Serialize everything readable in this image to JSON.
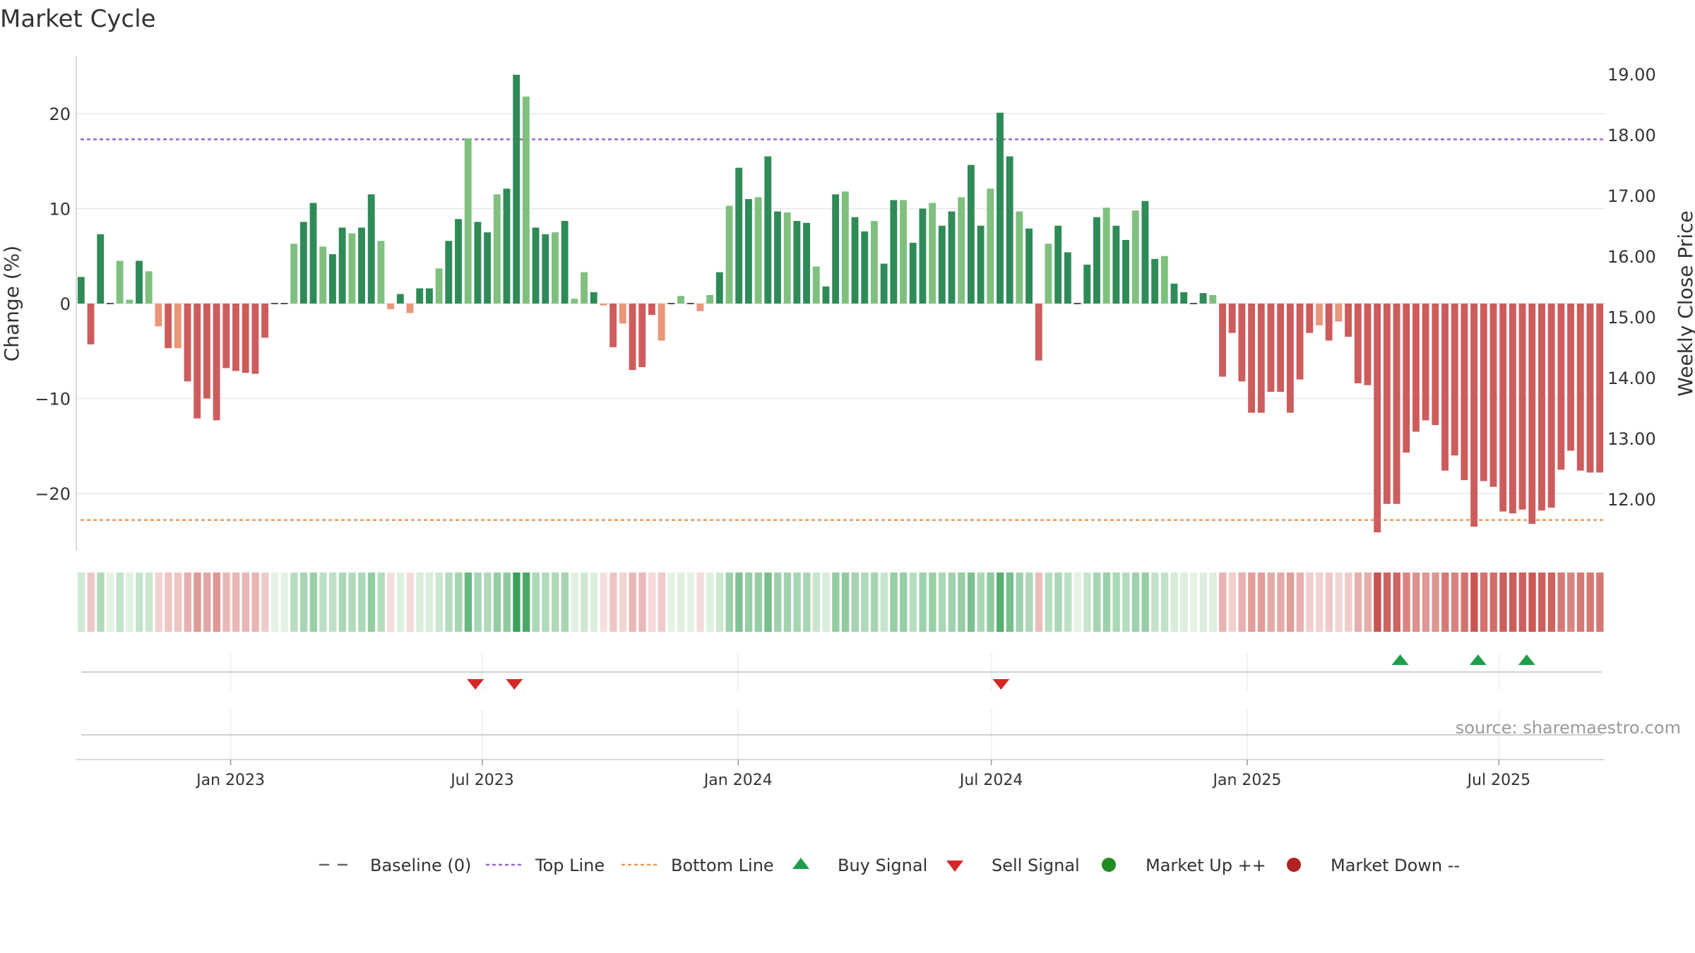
{
  "chart_data": {
    "type": "bar",
    "title": "Market Cycle",
    "ylabel": "Change (%)",
    "y2label": "Weekly Close Price",
    "ylim": [
      -26,
      26
    ],
    "y2lim": [
      11.3,
      19.4
    ],
    "yticks": [
      "−20",
      "−10",
      "0",
      "10",
      "20"
    ],
    "yticks_values": [
      -20,
      -10,
      0,
      10,
      20
    ],
    "y2ticks": [
      "12.00",
      "13.00",
      "14.00",
      "15.00",
      "16.00",
      "17.00",
      "18.00",
      "19.00"
    ],
    "y2ticks_values": [
      12,
      13,
      14,
      15,
      16,
      17,
      18,
      19
    ],
    "x_start": "2022-09-12",
    "x_end": "2025-09-15",
    "xticks": [
      {
        "label": "Jan 2023",
        "date": "2023-01-01"
      },
      {
        "label": "Jul 2023",
        "date": "2023-07-01"
      },
      {
        "label": "Jan 2024",
        "date": "2024-01-01"
      },
      {
        "label": "Jul 2024",
        "date": "2024-07-01"
      },
      {
        "label": "Jan 2025",
        "date": "2025-01-01"
      },
      {
        "label": "Jul 2025",
        "date": "2025-07-01"
      }
    ],
    "top_line": 17.3,
    "bottom_line": -22.8,
    "values": [
      2.8,
      -4.3,
      7.3,
      0.0,
      4.5,
      0.4,
      4.5,
      3.4,
      -2.4,
      -4.7,
      -4.7,
      -8.2,
      -12.1,
      -10.0,
      -12.3,
      -6.8,
      -7.1,
      -7.3,
      -7.4,
      -3.6,
      0.0,
      0.0,
      6.3,
      8.6,
      10.6,
      6.0,
      5.2,
      8.0,
      7.4,
      8.0,
      11.5,
      6.6,
      -0.6,
      1.0,
      -1.0,
      1.6,
      1.6,
      3.7,
      6.6,
      8.9,
      17.4,
      8.6,
      7.5,
      11.5,
      12.1,
      24.1,
      21.8,
      8.0,
      7.3,
      7.5,
      8.7,
      0.5,
      3.3,
      1.2,
      -0.2,
      -4.6,
      -2.1,
      -7.0,
      -6.7,
      -1.2,
      -3.9,
      0.0,
      0.8,
      0.0,
      -0.8,
      0.9,
      3.3,
      10.3,
      14.3,
      11.0,
      11.2,
      15.5,
      9.7,
      9.6,
      8.7,
      8.5,
      3.9,
      1.8,
      11.5,
      11.8,
      9.1,
      7.6,
      8.7,
      4.2,
      10.9,
      10.9,
      6.4,
      10.0,
      10.6,
      8.2,
      9.7,
      11.2,
      14.6,
      8.2,
      12.1,
      20.1,
      15.5,
      9.7,
      7.9,
      -6.0,
      6.3,
      8.2,
      5.4,
      0.0,
      4.1,
      9.1,
      10.1,
      8.2,
      6.7,
      9.8,
      10.8,
      4.7,
      5.0,
      2.1,
      1.2,
      0.0,
      1.1,
      0.9,
      -7.7,
      -3.1,
      -8.2,
      -11.5,
      -11.5,
      -9.3,
      -9.3,
      -11.5,
      -8.0,
      -3.1,
      -2.3,
      -3.9,
      -1.9,
      -3.5,
      -8.4,
      -8.6,
      -24.1,
      -21.1,
      -21.1,
      -15.7,
      -13.5,
      -12.3,
      -12.8,
      -17.6,
      -16.0,
      -18.6,
      -23.5,
      -18.7,
      -19.3,
      -21.9,
      -22.1,
      -21.7,
      -23.2,
      -21.8,
      -21.5,
      -17.5,
      -15.5,
      -17.6,
      -17.8,
      -17.8
    ],
    "weekly_close_price": null,
    "heat_strip_note": "color-intensity strip under main chart: greens for positive change, reds for negative change",
    "buy_signal_dates": [
      "2025-04-21",
      "2025-06-16",
      "2025-07-21"
    ],
    "sell_signal_dates": [
      "2023-06-26",
      "2023-07-24",
      "2024-07-08"
    ],
    "series_colors": {
      "positive_strong": "#2e8b57",
      "positive_light": "#7fc07f",
      "negative_strong": "#cd5c5c",
      "negative_light": "#e9967a",
      "top_line": "#9966cc",
      "bottom_line": "#e69a5a",
      "buy": "#1e9e4a",
      "sell": "#d62728",
      "market_up": "#228b22",
      "market_down": "#b22222"
    },
    "legend": [
      {
        "label": "Baseline (0)",
        "symbol": "dash"
      },
      {
        "label": "Top Line",
        "symbol": "dotted-purple"
      },
      {
        "label": "Bottom Line",
        "symbol": "dotted-orange"
      },
      {
        "label": "Buy Signal",
        "symbol": "triangle-up"
      },
      {
        "label": "Sell Signal",
        "symbol": "triangle-down"
      },
      {
        "label": "Market Up ++",
        "symbol": "circle-green"
      },
      {
        "label": "Market Down --",
        "symbol": "circle-red"
      }
    ],
    "legend_position": "bottom-center",
    "source": "source: sharemaestro.com",
    "grid": true
  }
}
